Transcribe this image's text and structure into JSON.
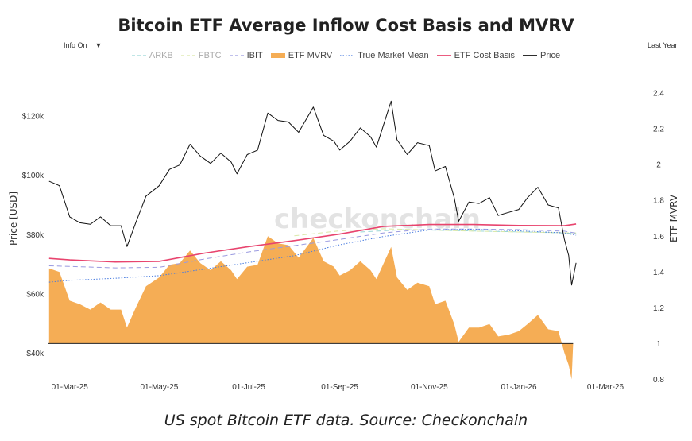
{
  "chart_data": {
    "type": "line",
    "title": "Bitcoin ETF Average Inflow Cost Basis and MVRV",
    "controls": {
      "info_label": "Info On",
      "info_caret": "▼",
      "range_label": "Last Year"
    },
    "legend": [
      {
        "name": "ARKB",
        "style": "dash",
        "color": "#9ad6d6",
        "dimmed": true
      },
      {
        "name": "FBTC",
        "style": "dash",
        "color": "#d9e8a8",
        "dimmed": true
      },
      {
        "name": "IBIT",
        "style": "dash",
        "color": "#9a9ae0",
        "dimmed": false
      },
      {
        "name": "ETF MVRV",
        "style": "area",
        "color": "#f5ad55",
        "dimmed": false
      },
      {
        "name": "True Market Mean",
        "style": "dot",
        "color": "#4a7de0",
        "dimmed": false
      },
      {
        "name": "ETF Cost Basis",
        "style": "solid",
        "color": "#e8446e",
        "dimmed": false
      },
      {
        "name": "Price",
        "style": "solid",
        "color": "#111111",
        "dimmed": false
      }
    ],
    "x_ticks": [
      "01-Mar-25",
      "01-May-25",
      "01-Jul-25",
      "01-Sep-25",
      "01-Nov-25",
      "01-Jan-26",
      "01-Mar-26"
    ],
    "x_range": [
      "2025-02-14",
      "2026-03-01"
    ],
    "y_left": {
      "label": "Price [USD]",
      "ticks": [
        "$40k",
        "$60k",
        "$80k",
        "$100k",
        "$120k"
      ],
      "tick_values": [
        40000,
        60000,
        80000,
        100000,
        120000
      ],
      "range": [
        30000,
        135000
      ]
    },
    "y_right": {
      "label": "ETF MVRV",
      "ticks": [
        "0.8",
        "1",
        "1.2",
        "1.4",
        "1.6",
        "1.8",
        "2",
        "2.2",
        "2.4"
      ],
      "tick_values": [
        0.8,
        1,
        1.2,
        1.4,
        1.6,
        1.8,
        2,
        2.2,
        2.4
      ],
      "range": [
        0.78,
        2.52
      ]
    },
    "watermark": "checkonchain",
    "series": [
      {
        "name": "Price",
        "axis": "left",
        "color": "#111111",
        "points": [
          [
            "2025-02-15",
            98000
          ],
          [
            "2025-02-22",
            96500
          ],
          [
            "2025-03-01",
            86000
          ],
          [
            "2025-03-08",
            84000
          ],
          [
            "2025-03-15",
            83500
          ],
          [
            "2025-03-22",
            86000
          ],
          [
            "2025-03-29",
            83000
          ],
          [
            "2025-04-05",
            83000
          ],
          [
            "2025-04-09",
            76000
          ],
          [
            "2025-04-15",
            84000
          ],
          [
            "2025-04-22",
            93000
          ],
          [
            "2025-05-01",
            96500
          ],
          [
            "2025-05-08",
            102000
          ],
          [
            "2025-05-15",
            103500
          ],
          [
            "2025-05-22",
            110500
          ],
          [
            "2025-05-29",
            106500
          ],
          [
            "2025-06-05",
            104000
          ],
          [
            "2025-06-12",
            107500
          ],
          [
            "2025-06-19",
            104500
          ],
          [
            "2025-06-23",
            100500
          ],
          [
            "2025-06-30",
            107000
          ],
          [
            "2025-07-07",
            108500
          ],
          [
            "2025-07-14",
            121000
          ],
          [
            "2025-07-21",
            118500
          ],
          [
            "2025-07-28",
            118000
          ],
          [
            "2025-08-04",
            114500
          ],
          [
            "2025-08-14",
            123000
          ],
          [
            "2025-08-21",
            113500
          ],
          [
            "2025-08-28",
            111500
          ],
          [
            "2025-09-01",
            108500
          ],
          [
            "2025-09-08",
            111500
          ],
          [
            "2025-09-15",
            116000
          ],
          [
            "2025-09-22",
            113000
          ],
          [
            "2025-09-26",
            109500
          ],
          [
            "2025-10-06",
            125000
          ],
          [
            "2025-10-10",
            112000
          ],
          [
            "2025-10-17",
            107000
          ],
          [
            "2025-10-24",
            111000
          ],
          [
            "2025-11-01",
            110000
          ],
          [
            "2025-11-05",
            101500
          ],
          [
            "2025-11-12",
            103000
          ],
          [
            "2025-11-18",
            92500
          ],
          [
            "2025-11-21",
            84500
          ],
          [
            "2025-11-28",
            91000
          ],
          [
            "2025-12-05",
            90500
          ],
          [
            "2025-12-12",
            92500
          ],
          [
            "2025-12-18",
            86500
          ],
          [
            "2025-12-25",
            87500
          ],
          [
            "2026-01-01",
            88500
          ],
          [
            "2026-01-07",
            92500
          ],
          [
            "2026-01-14",
            96000
          ],
          [
            "2026-01-21",
            90000
          ],
          [
            "2026-01-28",
            89000
          ],
          [
            "2026-02-01",
            78500
          ],
          [
            "2026-02-04",
            73000
          ],
          [
            "2026-02-06",
            63000
          ],
          [
            "2026-02-09",
            70500
          ]
        ]
      },
      {
        "name": "ETF Cost Basis",
        "axis": "left",
        "color": "#e8446e",
        "points": [
          [
            "2025-02-15",
            72000
          ],
          [
            "2025-03-01",
            71500
          ],
          [
            "2025-04-01",
            70800
          ],
          [
            "2025-05-01",
            71000
          ],
          [
            "2025-06-01",
            73800
          ],
          [
            "2025-07-01",
            76000
          ],
          [
            "2025-08-01",
            78000
          ],
          [
            "2025-09-01",
            80200
          ],
          [
            "2025-10-01",
            82800
          ],
          [
            "2025-11-01",
            83400
          ],
          [
            "2025-12-01",
            83400
          ],
          [
            "2026-01-01",
            83100
          ],
          [
            "2026-02-01",
            83000
          ],
          [
            "2026-02-09",
            83600
          ]
        ]
      },
      {
        "name": "IBIT",
        "axis": "left",
        "color": "#9a9ae0",
        "points": [
          [
            "2025-02-15",
            69500
          ],
          [
            "2025-03-01",
            69300
          ],
          [
            "2025-04-01",
            68800
          ],
          [
            "2025-05-01",
            69000
          ],
          [
            "2025-06-01",
            71800
          ],
          [
            "2025-07-01",
            74200
          ],
          [
            "2025-08-01",
            76300
          ],
          [
            "2025-09-01",
            78400
          ],
          [
            "2025-10-01",
            80600
          ],
          [
            "2025-11-01",
            81900
          ],
          [
            "2025-12-01",
            81900
          ],
          [
            "2026-01-01",
            81700
          ],
          [
            "2026-02-01",
            81200
          ],
          [
            "2026-02-09",
            80500
          ]
        ]
      },
      {
        "name": "FBTC",
        "axis": "left",
        "color": "#d9e8a8",
        "points": [
          [
            "2025-08-01",
            79600
          ],
          [
            "2025-09-01",
            81300
          ],
          [
            "2025-10-01",
            82000
          ],
          [
            "2025-11-01",
            81600
          ],
          [
            "2025-12-01",
            81200
          ],
          [
            "2026-01-01",
            80900
          ],
          [
            "2026-02-09",
            80600
          ]
        ]
      },
      {
        "name": "ARKB",
        "axis": "left",
        "color": "#9ad6d6",
        "points": [
          [
            "2025-09-15",
            80900
          ],
          [
            "2025-10-15",
            81700
          ],
          [
            "2025-11-15",
            81400
          ],
          [
            "2025-12-15",
            81100
          ],
          [
            "2026-01-15",
            80800
          ],
          [
            "2026-02-09",
            80400
          ]
        ]
      },
      {
        "name": "True Market Mean",
        "axis": "left",
        "color": "#4a7de0",
        "points": [
          [
            "2025-02-15",
            64000
          ],
          [
            "2025-03-01",
            64600
          ],
          [
            "2025-04-01",
            65300
          ],
          [
            "2025-05-01",
            66200
          ],
          [
            "2025-06-01",
            68400
          ],
          [
            "2025-07-01",
            70600
          ],
          [
            "2025-08-01",
            72900
          ],
          [
            "2025-09-01",
            76600
          ],
          [
            "2025-10-01",
            79400
          ],
          [
            "2025-11-01",
            81600
          ],
          [
            "2025-12-01",
            81800
          ],
          [
            "2026-01-01",
            81300
          ],
          [
            "2026-02-01",
            80600
          ],
          [
            "2026-02-09",
            79800
          ]
        ]
      },
      {
        "name": "ETF MVRV",
        "axis": "right",
        "color": "#f5ad55",
        "baseline": 1,
        "points": [
          [
            "2025-02-15",
            1.42
          ],
          [
            "2025-02-22",
            1.4
          ],
          [
            "2025-03-01",
            1.24
          ],
          [
            "2025-03-08",
            1.22
          ],
          [
            "2025-03-15",
            1.19
          ],
          [
            "2025-03-22",
            1.23
          ],
          [
            "2025-03-29",
            1.19
          ],
          [
            "2025-04-05",
            1.19
          ],
          [
            "2025-04-09",
            1.09
          ],
          [
            "2025-04-15",
            1.2
          ],
          [
            "2025-04-22",
            1.32
          ],
          [
            "2025-05-01",
            1.37
          ],
          [
            "2025-05-08",
            1.44
          ],
          [
            "2025-05-15",
            1.45
          ],
          [
            "2025-05-22",
            1.52
          ],
          [
            "2025-05-29",
            1.45
          ],
          [
            "2025-06-05",
            1.41
          ],
          [
            "2025-06-12",
            1.46
          ],
          [
            "2025-06-19",
            1.41
          ],
          [
            "2025-06-23",
            1.36
          ],
          [
            "2025-06-30",
            1.43
          ],
          [
            "2025-07-07",
            1.44
          ],
          [
            "2025-07-14",
            1.6
          ],
          [
            "2025-07-21",
            1.56
          ],
          [
            "2025-07-28",
            1.55
          ],
          [
            "2025-08-04",
            1.48
          ],
          [
            "2025-08-14",
            1.59
          ],
          [
            "2025-08-21",
            1.46
          ],
          [
            "2025-08-28",
            1.43
          ],
          [
            "2025-09-01",
            1.38
          ],
          [
            "2025-09-08",
            1.41
          ],
          [
            "2025-09-15",
            1.46
          ],
          [
            "2025-09-22",
            1.41
          ],
          [
            "2025-09-26",
            1.36
          ],
          [
            "2025-10-06",
            1.54
          ],
          [
            "2025-10-10",
            1.37
          ],
          [
            "2025-10-17",
            1.3
          ],
          [
            "2025-10-24",
            1.34
          ],
          [
            "2025-11-01",
            1.32
          ],
          [
            "2025-11-05",
            1.22
          ],
          [
            "2025-11-12",
            1.24
          ],
          [
            "2025-11-18",
            1.11
          ],
          [
            "2025-11-21",
            1.01
          ],
          [
            "2025-11-28",
            1.09
          ],
          [
            "2025-12-05",
            1.09
          ],
          [
            "2025-12-12",
            1.11
          ],
          [
            "2025-12-18",
            1.04
          ],
          [
            "2025-12-25",
            1.05
          ],
          [
            "2026-01-01",
            1.07
          ],
          [
            "2026-01-07",
            1.11
          ],
          [
            "2026-01-14",
            1.16
          ],
          [
            "2026-01-21",
            1.08
          ],
          [
            "2026-01-28",
            1.07
          ],
          [
            "2026-02-01",
            0.95
          ],
          [
            "2026-02-04",
            0.88
          ],
          [
            "2026-02-06",
            0.8
          ],
          [
            "2026-02-07",
            1.0
          ]
        ]
      }
    ]
  },
  "caption": "US spot Bitcoin ETF data. Source: Checkonchain"
}
